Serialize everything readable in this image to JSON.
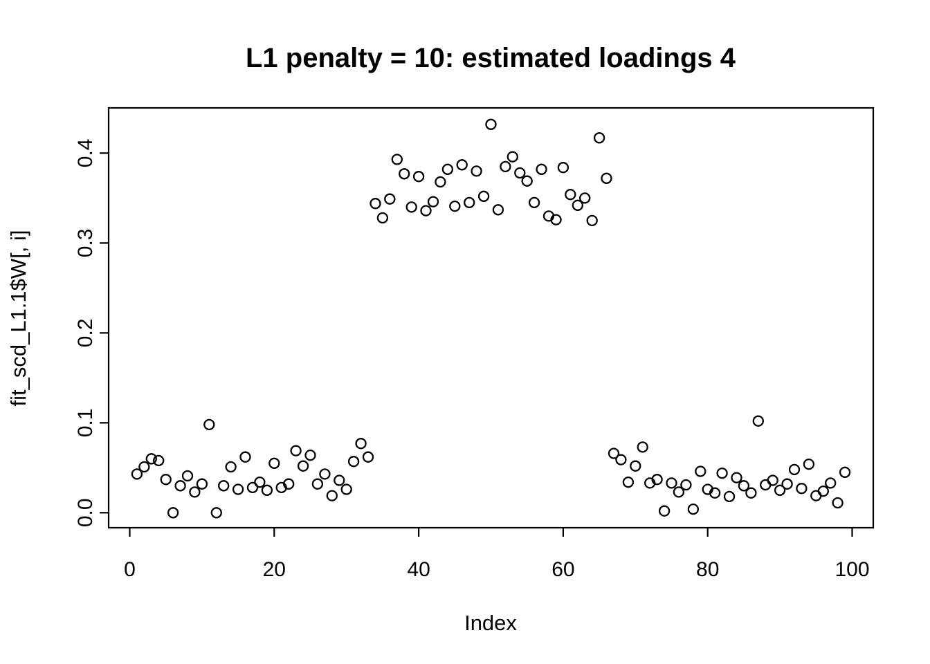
{
  "chart_data": {
    "type": "scatter",
    "title": "L1 penalty = 10: estimated loadings 4",
    "xlabel": "Index",
    "ylabel": "fit_scd_L1.1$W[, i]",
    "grid": false,
    "legend": "none",
    "marker": "open-circle",
    "marker_color": "#000000",
    "background_color": "#ffffff",
    "xlim": [
      -2.92,
      102.92
    ],
    "ylim": [
      -0.0167,
      0.4503
    ],
    "x_ticks": [
      0,
      20,
      40,
      60,
      80,
      100
    ],
    "x_tick_labels": [
      "0",
      "20",
      "40",
      "60",
      "80",
      "100"
    ],
    "y_ticks": [
      0.0,
      0.1,
      0.2,
      0.3,
      0.4
    ],
    "y_tick_labels": [
      "0.0",
      "0.1",
      "0.2",
      "0.3",
      "0.4"
    ],
    "x": [
      1,
      2,
      3,
      4,
      5,
      6,
      7,
      8,
      9,
      10,
      11,
      12,
      13,
      14,
      15,
      16,
      17,
      18,
      19,
      20,
      21,
      22,
      23,
      24,
      25,
      26,
      27,
      28,
      29,
      30,
      31,
      32,
      33,
      34,
      35,
      36,
      37,
      38,
      39,
      40,
      41,
      42,
      43,
      44,
      45,
      46,
      47,
      48,
      49,
      50,
      51,
      52,
      53,
      54,
      55,
      56,
      57,
      58,
      59,
      60,
      61,
      62,
      63,
      64,
      65,
      66,
      67,
      68,
      69,
      70,
      71,
      72,
      73,
      74,
      75,
      76,
      77,
      78,
      79,
      80,
      81,
      82,
      83,
      84,
      85,
      86,
      87,
      88,
      89,
      90,
      91,
      92,
      93,
      94,
      95,
      96,
      97,
      98,
      99
    ],
    "y": [
      0.043,
      0.051,
      0.06,
      0.058,
      0.037,
      0.0,
      0.03,
      0.041,
      0.023,
      0.032,
      0.098,
      0.0,
      0.03,
      0.051,
      0.026,
      0.062,
      0.028,
      0.034,
      0.025,
      0.055,
      0.028,
      0.032,
      0.069,
      0.052,
      0.064,
      0.032,
      0.043,
      0.019,
      0.036,
      0.026,
      0.057,
      0.077,
      0.062,
      0.344,
      0.328,
      0.349,
      0.393,
      0.377,
      0.34,
      0.374,
      0.336,
      0.346,
      0.368,
      0.382,
      0.341,
      0.387,
      0.345,
      0.38,
      0.352,
      0.432,
      0.337,
      0.385,
      0.396,
      0.378,
      0.369,
      0.345,
      0.382,
      0.33,
      0.326,
      0.384,
      0.354,
      0.342,
      0.35,
      0.325,
      0.417,
      0.372,
      0.066,
      0.059,
      0.034,
      0.052,
      0.073,
      0.033,
      0.037,
      0.002,
      0.033,
      0.023,
      0.031,
      0.004,
      0.046,
      0.026,
      0.022,
      0.044,
      0.018,
      0.039,
      0.03,
      0.022,
      0.102,
      0.031,
      0.036,
      0.025,
      0.032,
      0.048,
      0.027,
      0.054,
      0.019,
      0.024,
      0.033,
      0.011,
      0.045
    ]
  }
}
